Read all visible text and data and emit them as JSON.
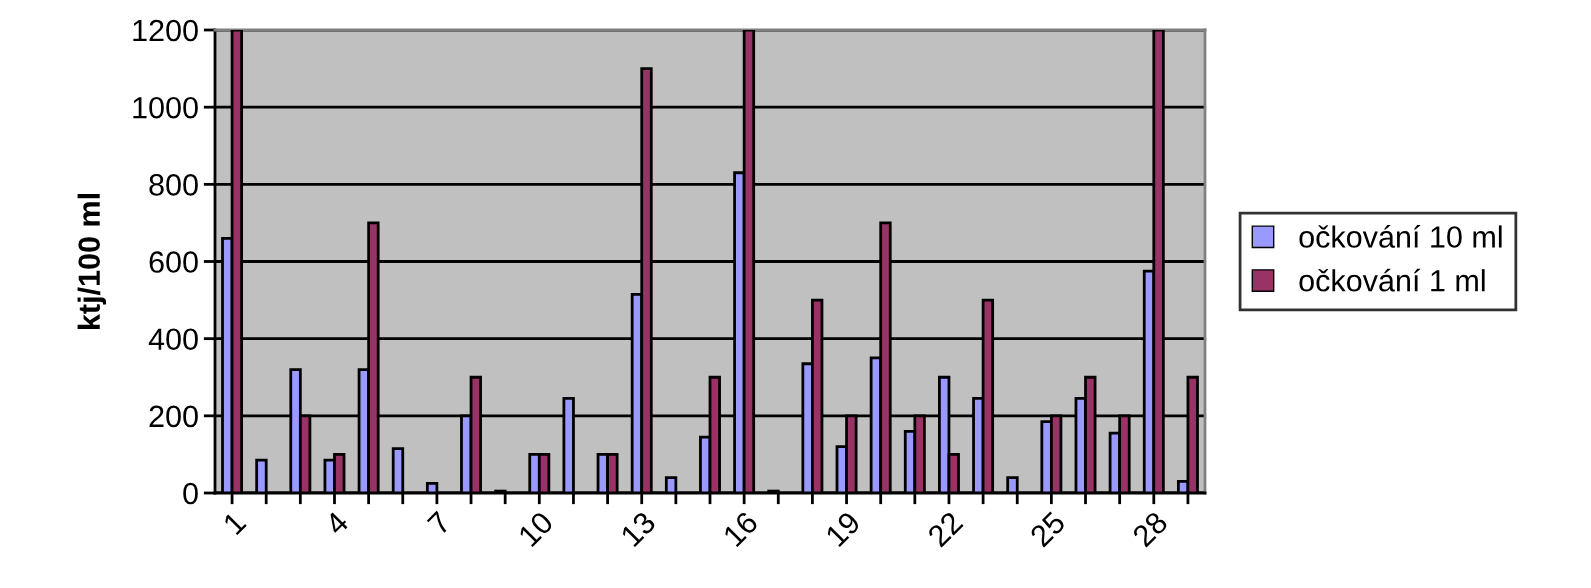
{
  "chart_data": {
    "type": "bar",
    "ylabel": "ktj/100 ml",
    "categories": [
      "1",
      null,
      null,
      "4",
      null,
      null,
      "7",
      null,
      null,
      "10",
      null,
      null,
      "13",
      null,
      null,
      "16",
      null,
      null,
      "19",
      null,
      null,
      "22",
      null,
      null,
      "25",
      null,
      null,
      "28",
      null
    ],
    "series": [
      {
        "name": "očkování 10 ml",
        "color": "#9999ff",
        "values": [
          660,
          85,
          320,
          85,
          320,
          115,
          25,
          200,
          5,
          100,
          245,
          100,
          515,
          40,
          145,
          830,
          5,
          335,
          120,
          350,
          160,
          300,
          245,
          40,
          185,
          245,
          155,
          575,
          30
        ]
      },
      {
        "name": "očkování 1 ml",
        "color": "#993366",
        "values": [
          1200,
          null,
          200,
          100,
          700,
          null,
          null,
          300,
          null,
          100,
          null,
          100,
          1100,
          null,
          300,
          1200,
          null,
          500,
          200,
          700,
          200,
          100,
          500,
          null,
          200,
          300,
          200,
          1200,
          300
        ]
      }
    ],
    "ylim": [
      0,
      1200
    ],
    "yticks": [
      0,
      200,
      400,
      600,
      800,
      1000,
      1200
    ],
    "grid": "y",
    "legend": "right"
  }
}
